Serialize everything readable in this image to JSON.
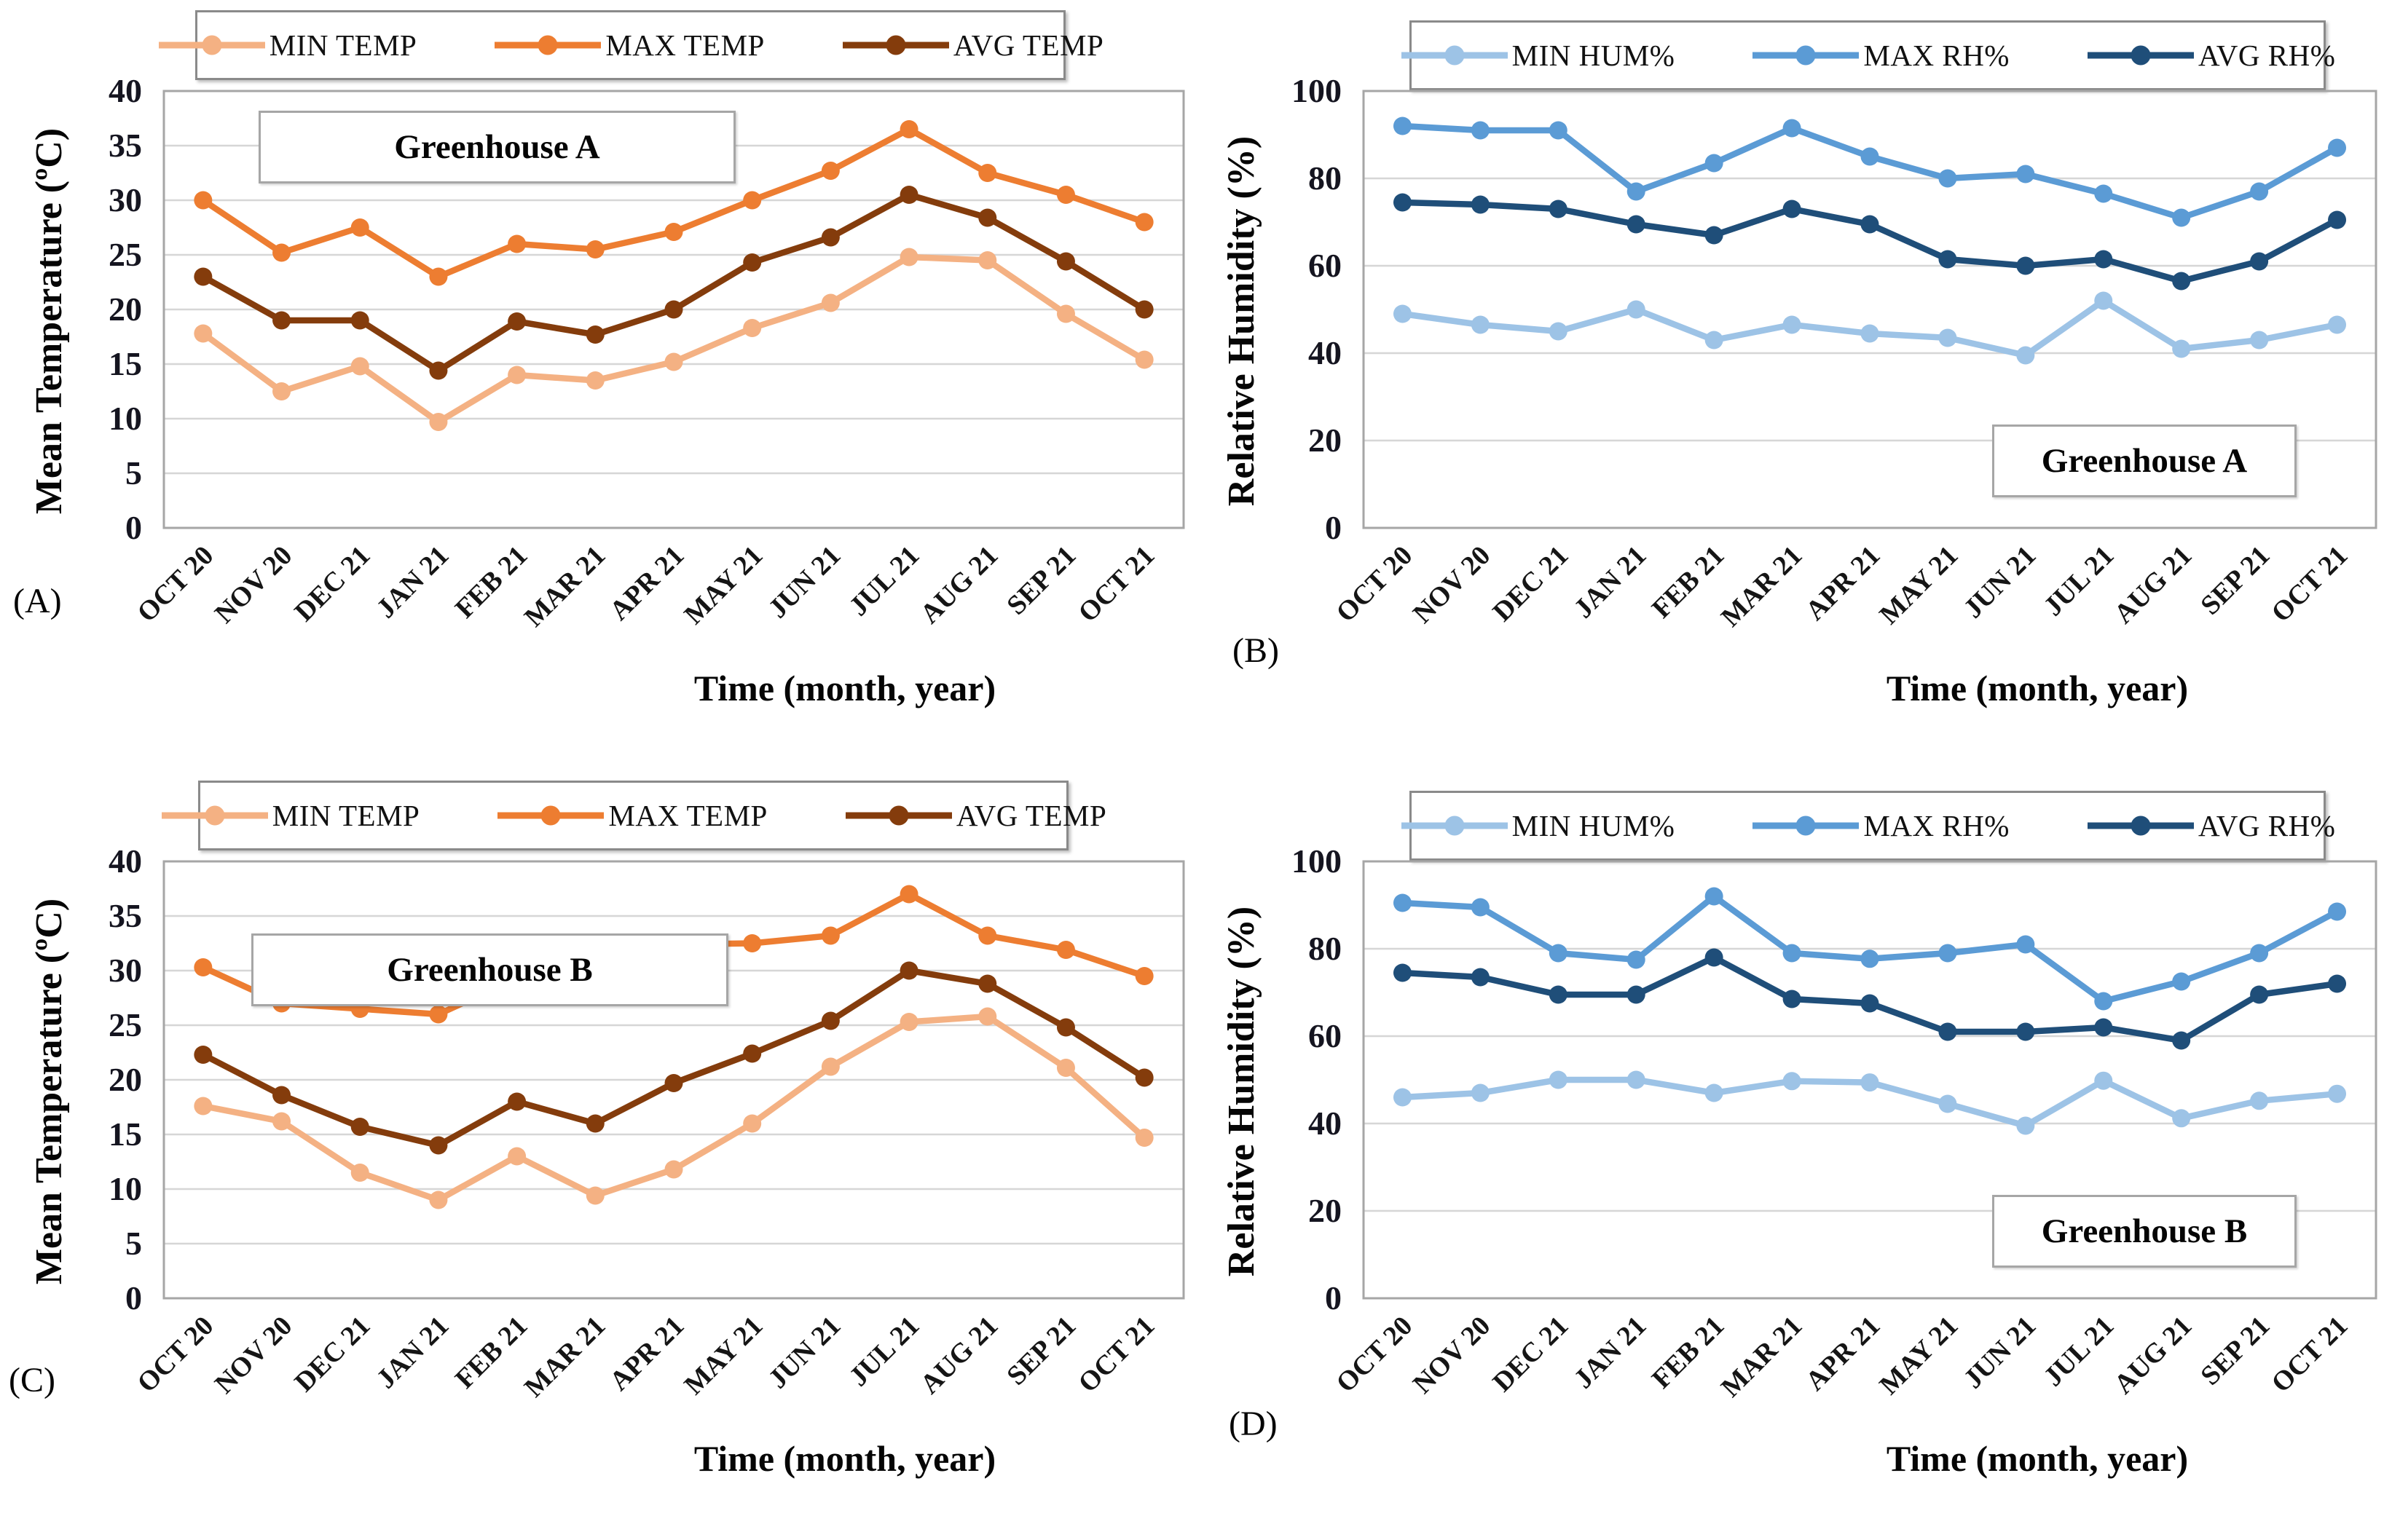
{
  "chart_data": [
    {
      "type": "line",
      "panel_label": "(A)",
      "title": "Greenhouse A",
      "xlabel": "Time (month, year)",
      "ylabel": "Mean Temperature (ºC)",
      "ylim": [
        0,
        40
      ],
      "y_ticks": [
        0,
        5,
        10,
        15,
        20,
        25,
        30,
        35,
        40
      ],
      "grid": true,
      "legend_position": "top",
      "categories": [
        "OCT 20",
        "NOV 20",
        "DEC 21",
        "JAN 21",
        "FEB 21",
        "MAR 21",
        "APR 21",
        "MAY 21",
        "JUN 21",
        "JUL 21",
        "AUG 21",
        "SEP 21",
        "OCT 21"
      ],
      "series": [
        {
          "name": "MIN TEMP",
          "color": "#F4B183",
          "values": [
            17.8,
            12.5,
            14.8,
            9.7,
            14,
            13.5,
            15.2,
            18.3,
            20.6,
            24.8,
            24.5,
            19.6,
            15.4
          ]
        },
        {
          "name": "MAX TEMP",
          "color": "#ED7D31",
          "values": [
            30,
            25.2,
            27.5,
            23,
            26,
            25.5,
            27.1,
            30,
            32.7,
            36.5,
            32.5,
            30.5,
            28
          ]
        },
        {
          "name": "AVG TEMP",
          "color": "#843C0C",
          "values": [
            23,
            19,
            19,
            14.4,
            18.9,
            17.7,
            20,
            24.3,
            26.6,
            30.5,
            28.4,
            24.4,
            20
          ]
        }
      ]
    },
    {
      "type": "line",
      "panel_label": "(B)",
      "title": "Greenhouse A",
      "xlabel": "Time (month, year)",
      "ylabel": "Relative Humidity (%)",
      "ylim": [
        0,
        100
      ],
      "y_ticks": [
        0,
        20,
        40,
        60,
        80,
        100
      ],
      "grid": true,
      "legend_position": "top",
      "categories": [
        "OCT 20",
        "NOV 20",
        "DEC 21",
        "JAN 21",
        "FEB 21",
        "MAR 21",
        "APR 21",
        "MAY 21",
        "JUN 21",
        "JUL 21",
        "AUG 21",
        "SEP 21",
        "OCT 21"
      ],
      "series": [
        {
          "name": "MIN HUM%",
          "color": "#9DC3E6",
          "values": [
            49,
            46.5,
            45,
            50,
            43,
            46.5,
            44.5,
            43.5,
            39.5,
            52,
            41,
            43,
            46.5
          ]
        },
        {
          "name": "MAX RH%",
          "color": "#5B9BD5",
          "values": [
            92,
            91,
            91,
            77,
            83.5,
            91.5,
            85,
            80,
            81,
            76.5,
            71,
            77,
            87
          ]
        },
        {
          "name": "AVG RH%",
          "color": "#1F4E79",
          "values": [
            74.5,
            74,
            73,
            69.5,
            67,
            73,
            69.5,
            61.5,
            60,
            61.5,
            56.5,
            61,
            70.5
          ]
        }
      ]
    },
    {
      "type": "line",
      "panel_label": "(C)",
      "title": "Greenhouse B",
      "xlabel": "Time (month, year)",
      "ylabel": "Mean Temperature (ºC)",
      "ylim": [
        0,
        40
      ],
      "y_ticks": [
        0,
        5,
        10,
        15,
        20,
        25,
        30,
        35,
        40
      ],
      "grid": true,
      "legend_position": "top",
      "categories": [
        "OCT 20",
        "NOV 20",
        "DEC 21",
        "JAN 21",
        "FEB 21",
        "MAR 21",
        "APR 21",
        "MAY 21",
        "JUN 21",
        "JUL 21",
        "AUG 21",
        "SEP 21",
        "OCT 21"
      ],
      "series": [
        {
          "name": "MIN TEMP",
          "color": "#F4B183",
          "values": [
            17.6,
            16.2,
            11.5,
            9,
            13,
            9.4,
            11.8,
            16,
            21.2,
            25.3,
            25.8,
            21.1,
            14.7
          ]
        },
        {
          "name": "MAX TEMP",
          "color": "#ED7D31",
          "values": [
            30.3,
            27,
            26.5,
            26,
            29.3,
            28.6,
            32.4,
            32.5,
            33.2,
            37,
            33.2,
            31.9,
            29.5
          ]
        },
        {
          "name": "AVG TEMP",
          "color": "#843C0C",
          "values": [
            22.3,
            18.6,
            15.7,
            14,
            18,
            16,
            19.7,
            22.4,
            25.4,
            30,
            28.8,
            24.8,
            20.2
          ]
        }
      ]
    },
    {
      "type": "line",
      "panel_label": "(D)",
      "title": "Greenhouse B",
      "xlabel": "Time (month, year)",
      "ylabel": "Relative Humidity (%)",
      "ylim": [
        0,
        100
      ],
      "y_ticks": [
        0,
        20,
        40,
        60,
        80,
        100
      ],
      "grid": true,
      "legend_position": "top",
      "categories": [
        "OCT 20",
        "NOV 20",
        "DEC 21",
        "JAN 21",
        "FEB 21",
        "MAR 21",
        "APR 21",
        "MAY 21",
        "JUN 21",
        "JUL 21",
        "AUG 21",
        "SEP 21",
        "OCT 21"
      ],
      "series": [
        {
          "name": "MIN HUM%",
          "color": "#9DC3E6",
          "values": [
            46,
            47,
            50,
            50,
            47,
            49.7,
            49.4,
            44.5,
            39.5,
            49.8,
            41.2,
            45.2,
            46.8
          ]
        },
        {
          "name": "MAX RH%",
          "color": "#5B9BD5",
          "values": [
            90.5,
            89.5,
            79,
            77.5,
            92,
            79,
            77.7,
            79,
            81,
            68,
            72.5,
            79,
            88.5
          ]
        },
        {
          "name": "AVG RH%",
          "color": "#1F4E79",
          "values": [
            74.5,
            73.5,
            69.5,
            69.5,
            78,
            68.5,
            67.5,
            61,
            61,
            62,
            59,
            69.5,
            72
          ]
        }
      ]
    }
  ],
  "figure_colors": {
    "gridline": "#D6D6D6",
    "plot_border": "#A6A6A6",
    "background": "#FFFFFF"
  }
}
